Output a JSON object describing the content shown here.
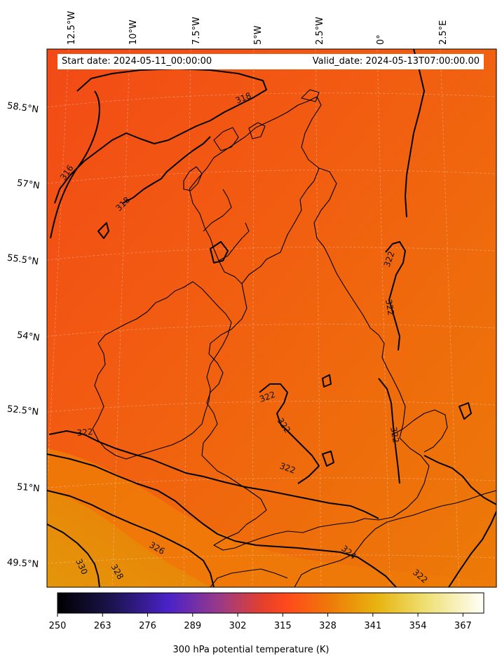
{
  "header": {
    "start_date": "Start date: 2024-05-11_00:00:00",
    "valid_date": "Valid_date: 2024-05-13T07:00:00.00"
  },
  "map": {
    "lon_labels": [
      "12.5°W",
      "10°W",
      "7.5°W",
      "5°W",
      "2.5°W",
      "0°",
      "2.5°E"
    ],
    "lat_labels": [
      "58.5°N",
      "57°N",
      "55.5°N",
      "54°N",
      "52.5°N",
      "51°N",
      "49.5°N"
    ],
    "contour_labels": [
      "318",
      "316",
      "318",
      "322",
      "322",
      "322",
      "322",
      "322",
      "322",
      "322",
      "324",
      "326",
      "328",
      "330",
      "322"
    ],
    "colors": {
      "warm": "#f0540f",
      "mid": "#ee7808",
      "hot": "#e29608",
      "coast": "#000000"
    }
  },
  "colorbar": {
    "title": "300 hPa potential temperature (K)",
    "ticks": [
      "250",
      "263",
      "276",
      "289",
      "302",
      "315",
      "328",
      "341",
      "354",
      "367"
    ],
    "range": [
      250,
      373
    ]
  }
}
